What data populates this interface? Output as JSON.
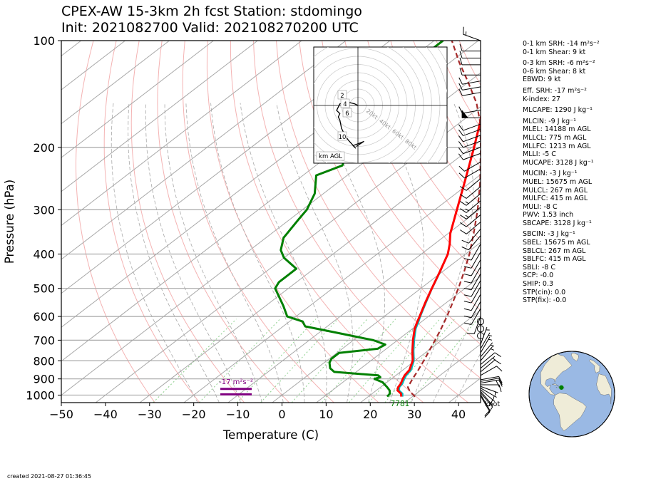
{
  "title_line1": "CPEX-AW 15-3km  2h fcst  Station: stdomingo",
  "title_line2": "Init: 2021082700  Valid: 202108270200 UTC",
  "created": "created 2021-08-27 01:36:45",
  "params": [
    {
      "text": "0-1 km SRH: -14 m²s⁻²",
      "gap": false
    },
    {
      "text": "0-1 km Shear: 9 kt",
      "gap": false
    },
    {
      "text": "0-3 km SRH: -6 m²s⁻²",
      "gap": true
    },
    {
      "text": "0-6 km Shear: 8 kt",
      "gap": false
    },
    {
      "text": "EBWD: 9 kt",
      "gap": false
    },
    {
      "text": "Eff. SRH: -17 m²s⁻²",
      "gap": true
    },
    {
      "text": "K-index: 27",
      "gap": false
    },
    {
      "text": "MLCAPE: 1290 J kg⁻¹",
      "gap": true
    },
    {
      "text": "MLCIN: -9 J kg⁻¹",
      "gap": true
    },
    {
      "text": "MLEL: 14188 m AGL",
      "gap": false
    },
    {
      "text": "MLLCL: 775 m AGL",
      "gap": false
    },
    {
      "text": "MLLFC: 1213 m AGL",
      "gap": false
    },
    {
      "text": "MLLI: -5 C",
      "gap": false
    },
    {
      "text": "MUCAPE: 3128 J kg⁻¹",
      "gap": false
    },
    {
      "text": "MUCIN: -3 J kg⁻¹",
      "gap": true
    },
    {
      "text": "MUEL: 15675 m AGL",
      "gap": false
    },
    {
      "text": "MULCL: 267 m AGL",
      "gap": false
    },
    {
      "text": "MULFC: 415 m AGL",
      "gap": false
    },
    {
      "text": "MULI: -8 C",
      "gap": false
    },
    {
      "text": "PWV: 1.53 inch",
      "gap": false
    },
    {
      "text": "SBCAPE: 3128 J kg⁻¹",
      "gap": false
    },
    {
      "text": "SBCIN: -3 J kg⁻¹",
      "gap": true
    },
    {
      "text": "SBEL: 15675 m AGL",
      "gap": false
    },
    {
      "text": "SBLCL: 267 m AGL",
      "gap": false
    },
    {
      "text": "SBLFC: 415 m AGL",
      "gap": false
    },
    {
      "text": "SBLI: -8 C",
      "gap": false
    },
    {
      "text": "SCP: -0.0",
      "gap": false
    },
    {
      "text": "SHIP: 0.3",
      "gap": false
    },
    {
      "text": "STP(cin): 0.0",
      "gap": false
    },
    {
      "text": "STP(fix): -0.0",
      "gap": false
    }
  ],
  "chart_data": {
    "type": "line",
    "subtype": "skew-t log-p sounding",
    "xlabel": "Temperature (C)",
    "ylabel": "Pressure (hPa)",
    "xlim": [
      -50,
      45
    ],
    "ylim": [
      1050,
      100
    ],
    "y_scale": "log",
    "x_ticks": [
      -50,
      -40,
      -30,
      -20,
      -10,
      0,
      10,
      20,
      30,
      40
    ],
    "y_ticks": [
      100,
      200,
      300,
      400,
      500,
      600,
      700,
      800,
      900,
      1000
    ],
    "grid": true,
    "colors": {
      "temperature": "#ff0000",
      "dewpoint": "#008000",
      "virtual_temperature": "#00bfbf",
      "parcel": "#a52a2a",
      "srh_marker": "#800080",
      "lcl_label": "#008000",
      "dry_adiabat": "#f4b3b3",
      "moist_adiabat": "#a8a8a8",
      "mixing_ratio": "#8fd18f",
      "isotherm": "#a8a8a8"
    },
    "series": [
      {
        "name": "Temperature",
        "points": [
          [
            1010,
            27.5
          ],
          [
            990,
            26.5
          ],
          [
            970,
            24.8
          ],
          [
            950,
            24.0
          ],
          [
            930,
            23.6
          ],
          [
            900,
            22.6
          ],
          [
            880,
            22.0
          ],
          [
            850,
            21.5
          ],
          [
            800,
            19.5
          ],
          [
            750,
            16.5
          ],
          [
            700,
            13.5
          ],
          [
            650,
            10.5
          ],
          [
            620,
            9.0
          ],
          [
            600,
            8.0
          ],
          [
            550,
            5.3
          ],
          [
            500,
            2.5
          ],
          [
            450,
            -0.5
          ],
          [
            400,
            -4.0
          ],
          [
            375,
            -6.5
          ],
          [
            350,
            -9.5
          ],
          [
            300,
            -15.0
          ],
          [
            250,
            -21.5
          ],
          [
            200,
            -29.5
          ],
          [
            170,
            -35.5
          ],
          [
            150,
            -40.5
          ],
          [
            130,
            -46.0
          ],
          [
            120,
            -49.0
          ],
          [
            110,
            -49.5
          ],
          [
            100,
            -45.0
          ]
        ]
      },
      {
        "name": "Virtual temperature",
        "points": [
          [
            1010,
            27.8
          ],
          [
            990,
            26.9
          ],
          [
            970,
            25.2
          ],
          [
            950,
            24.3
          ],
          [
            930,
            24.0
          ],
          [
            900,
            23.0
          ],
          [
            880,
            22.4
          ],
          [
            850,
            21.9
          ],
          [
            800,
            19.8
          ],
          [
            750,
            16.8
          ],
          [
            700,
            13.8
          ],
          [
            650,
            10.8
          ],
          [
            620,
            9.3
          ],
          [
            600,
            8.2
          ],
          [
            550,
            5.5
          ],
          [
            500,
            2.6
          ],
          [
            450,
            -0.4
          ],
          [
            400,
            -4.0
          ],
          [
            375,
            -6.5
          ],
          [
            350,
            -9.5
          ],
          [
            300,
            -15.0
          ],
          [
            250,
            -21.5
          ],
          [
            200,
            -29.5
          ],
          [
            170,
            -35.5
          ],
          [
            150,
            -40.5
          ],
          [
            130,
            -46.0
          ],
          [
            120,
            -49.0
          ],
          [
            110,
            -49.5
          ],
          [
            100,
            -45.0
          ]
        ]
      },
      {
        "name": "Dewpoint",
        "points": [
          [
            1010,
            24.3
          ],
          [
            990,
            24.0
          ],
          [
            970,
            23.0
          ],
          [
            950,
            21.5
          ],
          [
            920,
            19.0
          ],
          [
            900,
            16.2
          ],
          [
            890,
            17.0
          ],
          [
            880,
            16.0
          ],
          [
            860,
            5.0
          ],
          [
            840,
            3.0
          ],
          [
            810,
            1.2
          ],
          [
            790,
            0.5
          ],
          [
            760,
            0.5
          ],
          [
            740,
            8.0
          ],
          [
            720,
            8.5
          ],
          [
            700,
            4.5
          ],
          [
            670,
            -5.0
          ],
          [
            640,
            -15.0
          ],
          [
            620,
            -17.0
          ],
          [
            600,
            -22.0
          ],
          [
            560,
            -26.0
          ],
          [
            500,
            -33.0
          ],
          [
            480,
            -34.0
          ],
          [
            440,
            -34.0
          ],
          [
            410,
            -40.0
          ],
          [
            390,
            -43.0
          ],
          [
            360,
            -46.0
          ],
          [
            320,
            -48.0
          ],
          [
            300,
            -49.0
          ],
          [
            270,
            -52.0
          ],
          [
            240,
            -57.0
          ],
          [
            225,
            -54.0
          ],
          [
            200,
            -58.0
          ],
          [
            170,
            -62.0
          ],
          [
            150,
            -63.0
          ],
          [
            130,
            -68.0
          ],
          [
            120,
            -69.0
          ],
          [
            110,
            -68.0
          ],
          [
            100,
            -68.0
          ]
        ]
      },
      {
        "name": "Parcel",
        "points": [
          [
            1010,
            30.6
          ],
          [
            990,
            29.0
          ],
          [
            970,
            27.5
          ],
          [
            950,
            26.2
          ],
          [
            900,
            24.8
          ],
          [
            850,
            23.5
          ],
          [
            800,
            22.0
          ],
          [
            750,
            20.3
          ],
          [
            700,
            18.5
          ],
          [
            650,
            16.5
          ],
          [
            600,
            14.2
          ],
          [
            550,
            11.5
          ],
          [
            500,
            8.5
          ],
          [
            450,
            5.0
          ],
          [
            400,
            0.9
          ],
          [
            350,
            -4.2
          ],
          [
            300,
            -10.3
          ],
          [
            250,
            -18.0
          ],
          [
            200,
            -28.0
          ],
          [
            170,
            -35.5
          ],
          [
            150,
            -42.0
          ],
          [
            130,
            -50.5
          ],
          [
            115,
            -58.0
          ],
          [
            100,
            -66.0
          ]
        ]
      }
    ],
    "annotations": [
      {
        "text": "-17 m²s⁻²",
        "kind": "effective inflow layer SRH"
      },
      {
        "text": "7781",
        "kind": "lcl label"
      },
      {
        "text": "knot",
        "kind": "wind barb units"
      }
    ],
    "wind_barbs": {
      "units": "knot",
      "pressures": [
        1005,
        995,
        985,
        975,
        965,
        955,
        945,
        935,
        925,
        915,
        905,
        880,
        860,
        840,
        820,
        800,
        780,
        760,
        740,
        720,
        680,
        650,
        620,
        600,
        570,
        545,
        520,
        495,
        475,
        455,
        435,
        415,
        395,
        375,
        355,
        340,
        325,
        310,
        295,
        283,
        270,
        258,
        245,
        230,
        220,
        208,
        200,
        192,
        185,
        178,
        172,
        165,
        157,
        140,
        135,
        130,
        125,
        117,
        112,
        107,
        100
      ],
      "speeds": [
        12,
        10,
        8,
        7,
        6,
        5,
        5,
        10,
        20,
        10,
        10,
        10,
        8,
        7,
        8,
        7,
        6,
        5,
        5,
        4,
        0,
        0,
        0,
        8,
        10,
        12,
        12,
        12,
        12,
        12,
        10,
        10,
        10,
        10,
        10,
        12,
        12,
        12,
        15,
        15,
        15,
        12,
        12,
        12,
        12,
        10,
        12,
        12,
        12,
        12,
        10,
        50,
        10,
        12,
        12,
        12,
        12,
        12,
        12,
        12,
        15
      ],
      "directions": [
        150,
        150,
        140,
        140,
        130,
        120,
        110,
        90,
        80,
        80,
        80,
        60,
        50,
        50,
        50,
        40,
        40,
        30,
        30,
        20,
        0,
        0,
        0,
        200,
        210,
        210,
        210,
        210,
        210,
        210,
        210,
        210,
        210,
        210,
        220,
        220,
        230,
        230,
        230,
        230,
        230,
        230,
        230,
        240,
        240,
        250,
        250,
        250,
        250,
        250,
        250,
        270,
        260,
        260,
        260,
        260,
        270,
        270,
        270,
        270,
        290
      ]
    },
    "hodograph": {
      "rings": [
        {
          "r": 20,
          "label": "20kt"
        },
        {
          "r": 40,
          "label": "40kt"
        },
        {
          "r": 60,
          "label": "60kt"
        },
        {
          "r": 80,
          "label": "80kt"
        }
      ],
      "height_labels": [
        "2",
        "4",
        "6",
        "10"
      ],
      "label": "km AGL",
      "points": [
        [
          0,
          0
        ],
        [
          -4,
          2
        ],
        [
          -12,
          4
        ],
        [
          -22,
          2
        ],
        [
          -26,
          -6
        ],
        [
          -22,
          -10
        ],
        [
          -24,
          -14
        ],
        [
          -22,
          -18
        ],
        [
          -20,
          -28
        ],
        [
          -16,
          -36
        ],
        [
          -12,
          -42
        ],
        [
          -3,
          -52
        ],
        [
          -6,
          -49
        ],
        [
          7,
          -44
        ],
        [
          -2,
          -50
        ]
      ]
    },
    "globe": {
      "marker_lon": -69.9,
      "marker_lat": 18.5
    }
  }
}
